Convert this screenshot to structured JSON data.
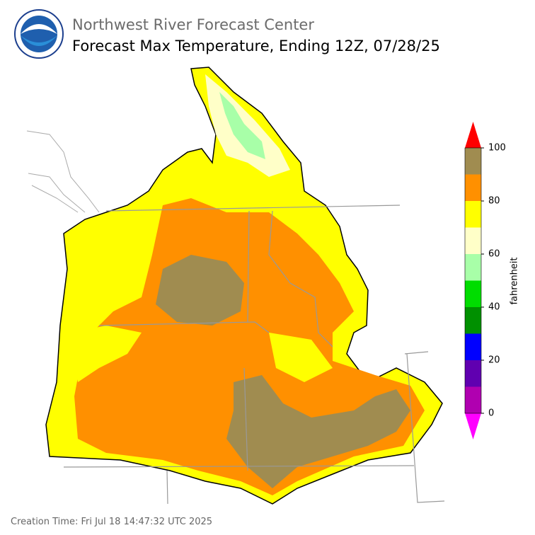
{
  "header": {
    "title": "Northwest River Forecast Center",
    "subtitle": "Forecast Max Temperature, Ending 12Z, 07/28/25"
  },
  "colorbar": {
    "label": "fahrenheit",
    "bounds": [
      0,
      10,
      20,
      30,
      40,
      50,
      60,
      70,
      80,
      90,
      100
    ],
    "colors": [
      "#b000b0",
      "#6000b0",
      "#0000ff",
      "#009000",
      "#00dd00",
      "#a8ffa8",
      "#ffffc8",
      "#ffff00",
      "#ff9000",
      "#a08c50"
    ],
    "under_color": "#ff00ff",
    "over_color": "#ff0000",
    "ticks": [
      0,
      20,
      40,
      60,
      80,
      100
    ]
  },
  "footer": {
    "creation_time": "Creation Time: Fri Jul 18 14:47:32 UTC 2025"
  }
}
